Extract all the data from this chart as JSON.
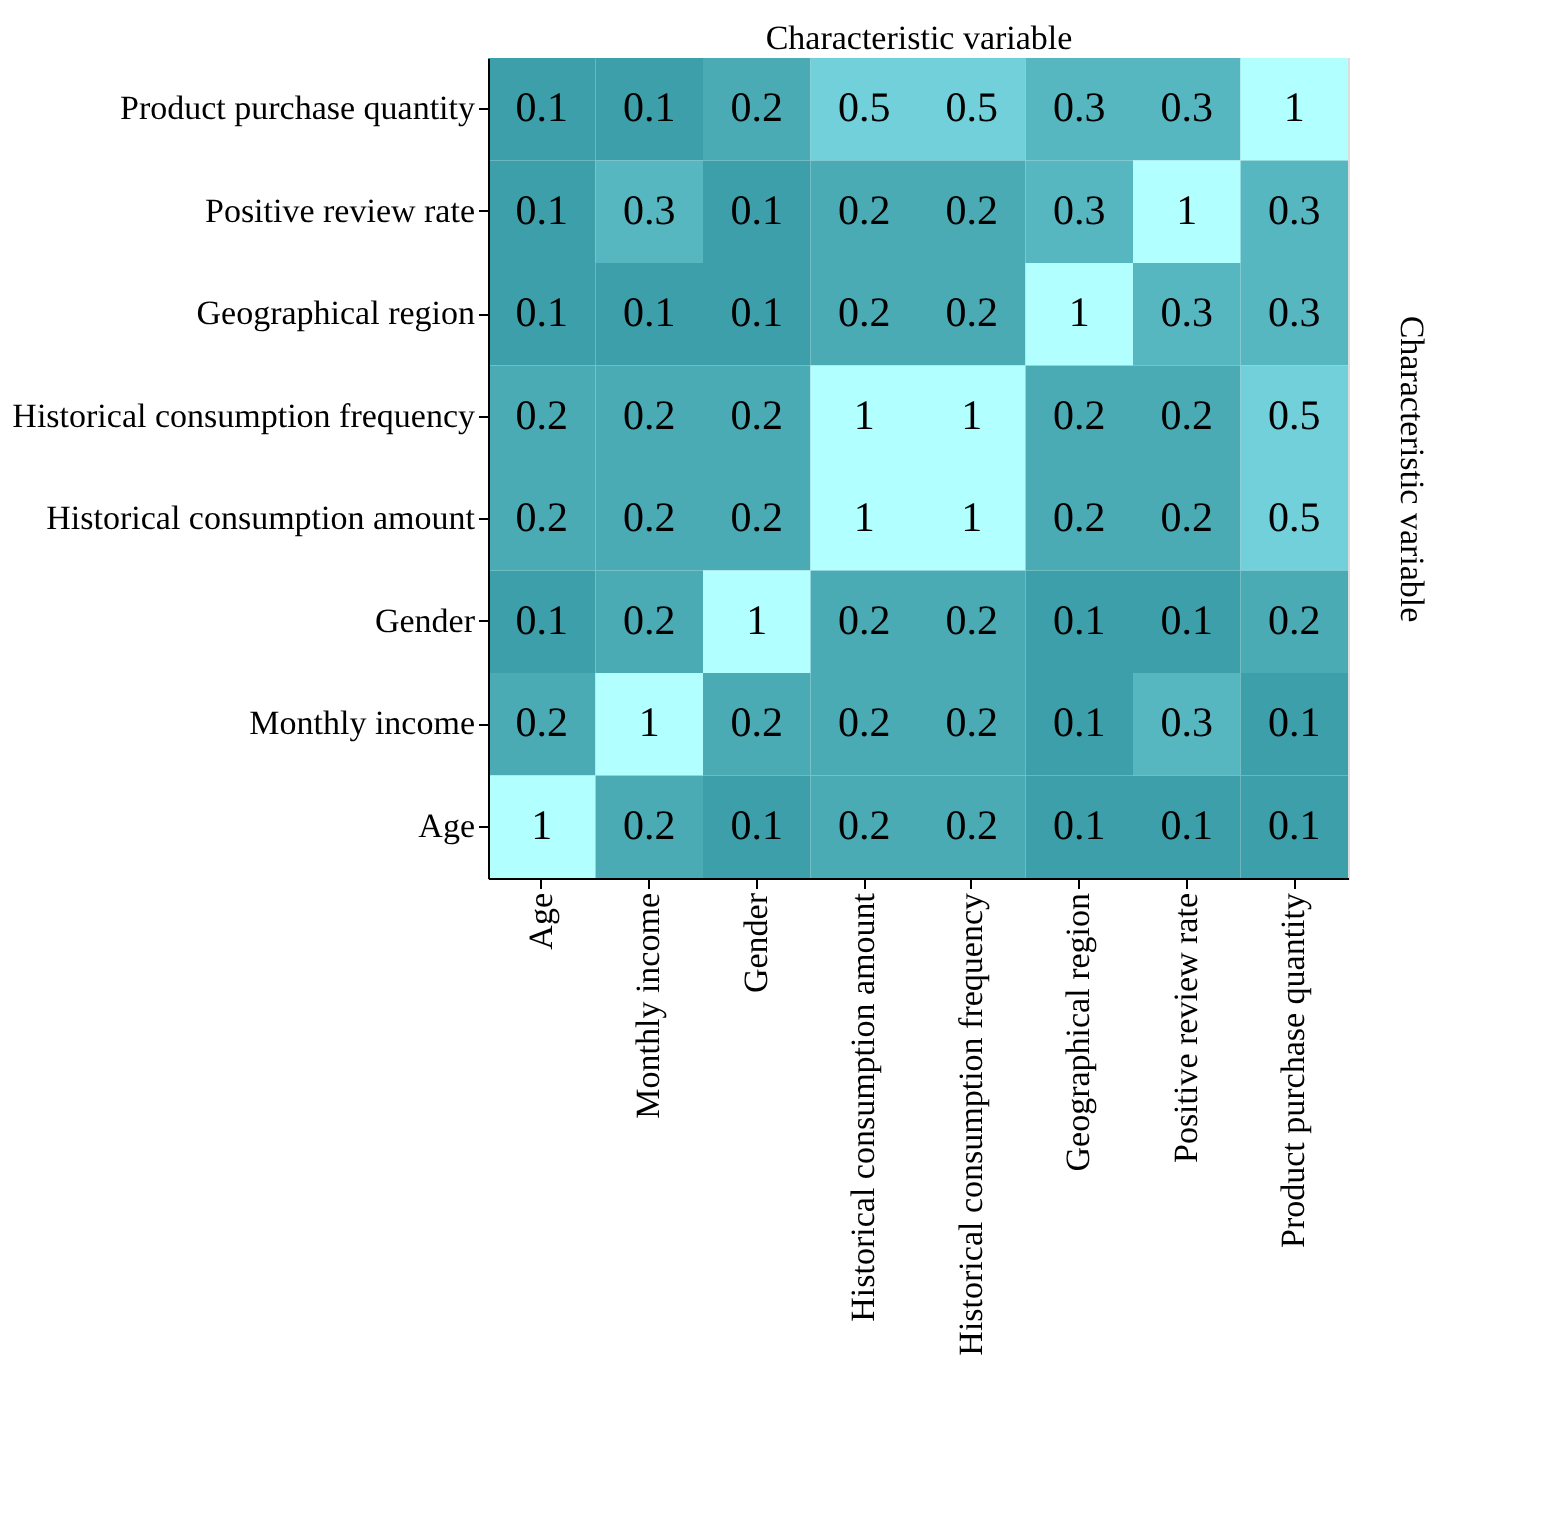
{
  "chart_data": {
    "type": "heatmap",
    "xlabel": "Characteristic variable",
    "ylabel": "Characteristic variable",
    "categories": [
      "Age",
      "Monthly income",
      "Gender",
      "Historical consumption amount",
      "Historical consumption frequency",
      "Geographical region",
      "Positive review rate",
      "Product purchase quantity"
    ],
    "y_categories": [
      "Product purchase quantity",
      "Positive review rate",
      "Geographical region",
      "Historical consumption frequency",
      "Historical consumption amount",
      "Gender",
      "Monthly income",
      "Age"
    ],
    "cells": [
      [
        0.1,
        0.1,
        0.2,
        0.5,
        0.5,
        0.3,
        0.3,
        1
      ],
      [
        0.1,
        0.3,
        0.1,
        0.2,
        0.2,
        0.3,
        1,
        0.3
      ],
      [
        0.1,
        0.1,
        0.1,
        0.2,
        0.2,
        1,
        0.3,
        0.3
      ],
      [
        0.2,
        0.2,
        0.2,
        1,
        1,
        0.2,
        0.2,
        0.5
      ],
      [
        0.2,
        0.2,
        0.2,
        1,
        1,
        0.2,
        0.2,
        0.5
      ],
      [
        0.1,
        0.2,
        1,
        0.2,
        0.2,
        0.1,
        0.1,
        0.2
      ],
      [
        0.2,
        1,
        0.2,
        0.2,
        0.2,
        0.1,
        0.3,
        0.1
      ],
      [
        1,
        0.2,
        0.1,
        0.2,
        0.2,
        0.1,
        0.1,
        0.1
      ]
    ],
    "data_labels": true
  }
}
